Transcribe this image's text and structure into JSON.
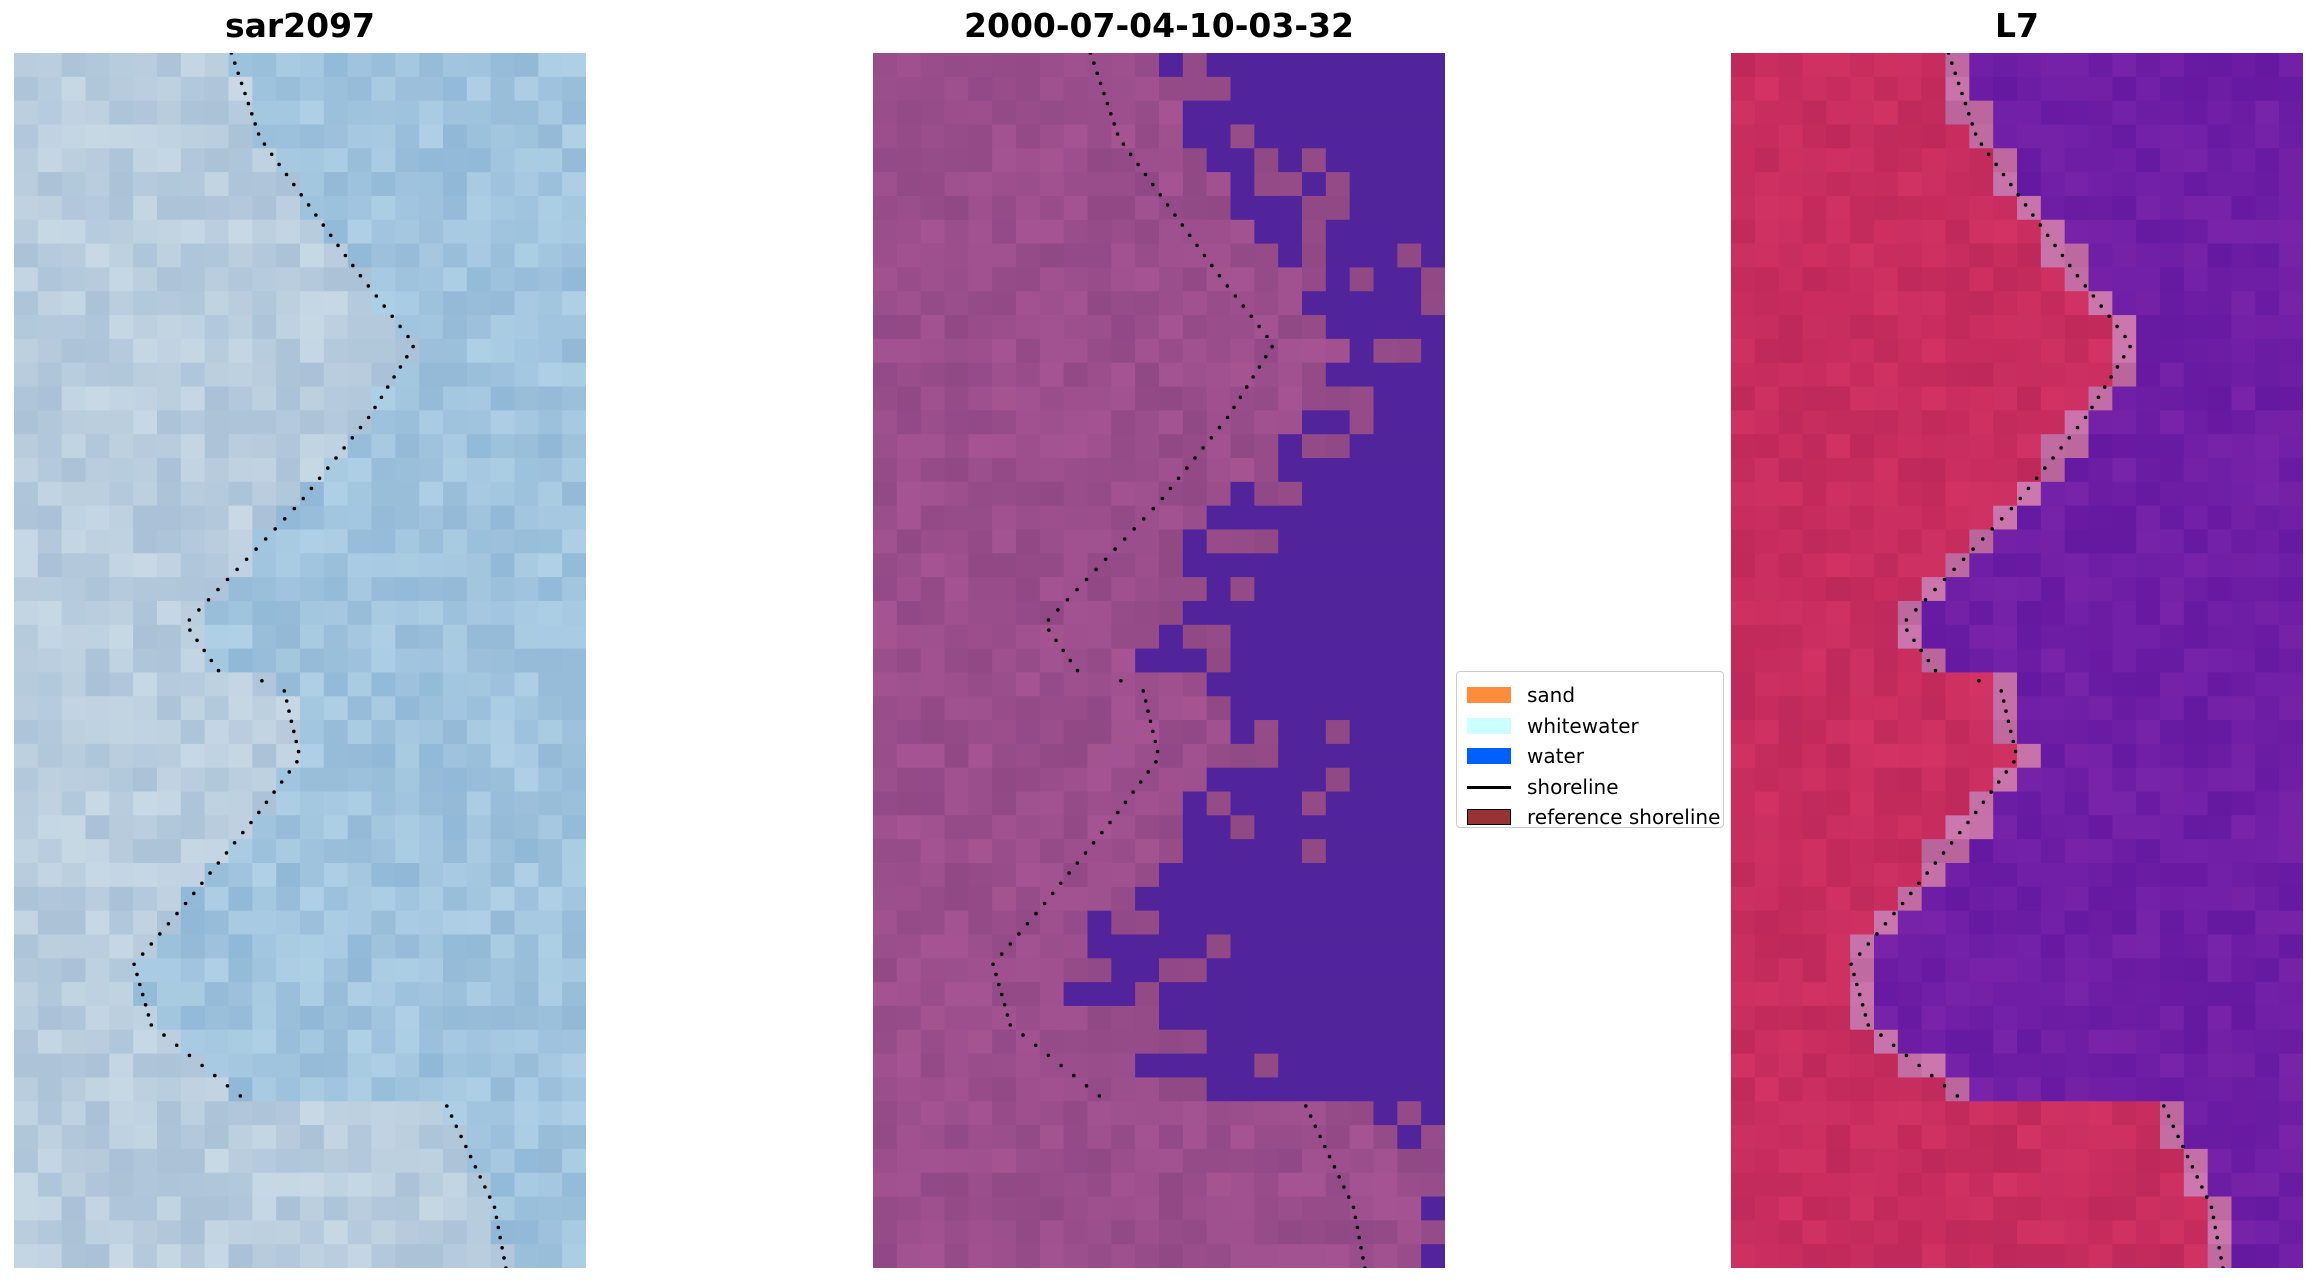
{
  "panels": [
    {
      "id": "rgb",
      "title": "sar2097",
      "colormap": "rgb"
    },
    {
      "id": "classified",
      "title": "2000-07-04-10-03-32",
      "colormap": "classified"
    },
    {
      "id": "index",
      "title": "L7",
      "colormap": "index"
    }
  ],
  "legend": {
    "items": [
      {
        "label": "sand",
        "kind": "patch",
        "color": "#ff8c3a"
      },
      {
        "label": "whitewater",
        "kind": "patch",
        "color": "#ccffff"
      },
      {
        "label": "water",
        "kind": "patch",
        "color": "#0060ff"
      },
      {
        "label": "shoreline",
        "kind": "line",
        "color": "#000000"
      },
      {
        "label": "reference shoreline",
        "kind": "patch",
        "color": "#993333"
      }
    ]
  },
  "colors": {
    "classified_sand_area": "#9b4a8f",
    "classified_water": "#51249c",
    "rgb_base": "#a8c5df",
    "index_land": "#c93f6a",
    "index_water": "#6a1aa6"
  }
}
